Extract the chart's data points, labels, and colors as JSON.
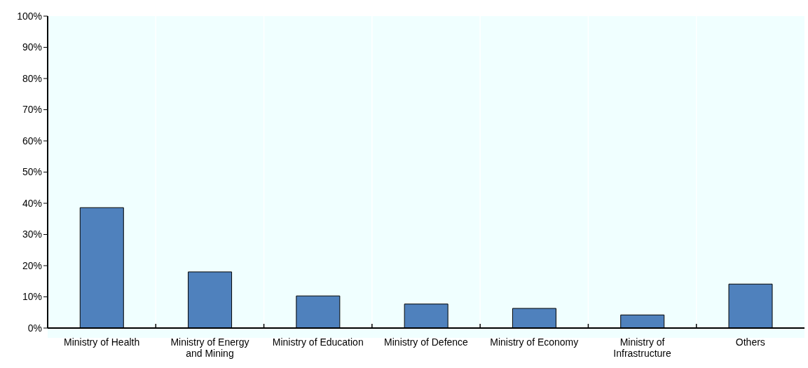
{
  "chart_data": {
    "type": "bar",
    "categories": [
      "Ministry of Health",
      "Ministry of Energy and Mining",
      "Ministry of Education",
      "Ministry of Defence",
      "Ministry of Economy",
      "Ministry of Infrastructure",
      "Others"
    ],
    "values": [
      38.6,
      18.0,
      10.3,
      7.7,
      6.3,
      4.2,
      14.1
    ],
    "color": "#4f81bd",
    "ylim": [
      0,
      100
    ],
    "yticks": [
      {
        "value": 0,
        "label": "0%"
      },
      {
        "value": 10,
        "label": "10%"
      },
      {
        "value": 20,
        "label": "20%"
      },
      {
        "value": 30,
        "label": "30%"
      },
      {
        "value": 40,
        "label": "40%"
      },
      {
        "value": 50,
        "label": "50%"
      },
      {
        "value": 60,
        "label": "60%"
      },
      {
        "value": 70,
        "label": "70%"
      },
      {
        "value": 80,
        "label": "80%"
      },
      {
        "value": 90,
        "label": "90%"
      },
      {
        "value": 100,
        "label": "100%"
      }
    ],
    "grid": true
  }
}
